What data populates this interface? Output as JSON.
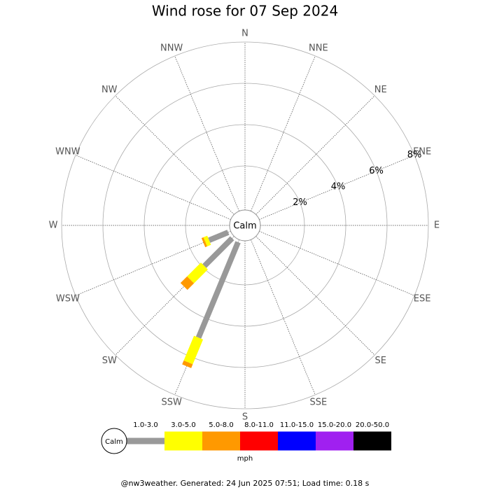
{
  "chart_data": {
    "type": "windrose",
    "title": "Wind rose for 07 Sep 2024",
    "directions": [
      "N",
      "NNE",
      "NE",
      "ENE",
      "E",
      "ESE",
      "SE",
      "SSE",
      "S",
      "SSW",
      "SW",
      "WSW",
      "W",
      "WNW",
      "NW",
      "NNW"
    ],
    "calm_label": "Calm",
    "unit": "mph",
    "rlim": [
      0,
      8
    ],
    "rticks": [
      {
        "value": 2,
        "label": "2%"
      },
      {
        "value": 4,
        "label": "4%"
      },
      {
        "value": 6,
        "label": "6%"
      },
      {
        "value": 8,
        "label": "8%"
      }
    ],
    "series": [
      {
        "name": "1.0-3.0",
        "color": "#999999",
        "values": [
          0,
          0,
          0,
          0,
          0,
          0,
          0,
          0,
          0,
          5.0,
          1.9,
          1.0,
          0,
          0,
          0,
          0
        ]
      },
      {
        "name": "3.0-5.0",
        "color": "#ffff00",
        "values": [
          0,
          0,
          0,
          0,
          0,
          0,
          0,
          0,
          0,
          1.3,
          0.95,
          0.2,
          0,
          0,
          0,
          0
        ]
      },
      {
        "name": "5.0-8.0",
        "color": "#ff9900",
        "values": [
          0,
          0,
          0,
          0,
          0,
          0,
          0,
          0,
          0,
          0.2,
          0.45,
          0.1,
          0,
          0,
          0,
          0
        ]
      },
      {
        "name": "8.0-11.0",
        "color": "#ff0000",
        "values": [
          0,
          0,
          0,
          0,
          0,
          0,
          0,
          0,
          0,
          0,
          0,
          0,
          0,
          0,
          0,
          0
        ]
      },
      {
        "name": "11.0-15.0",
        "color": "#0000ff",
        "values": [
          0,
          0,
          0,
          0,
          0,
          0,
          0,
          0,
          0,
          0,
          0,
          0,
          0,
          0,
          0,
          0
        ]
      },
      {
        "name": "15.0-20.0",
        "color": "#a020f0",
        "values": [
          0,
          0,
          0,
          0,
          0,
          0,
          0,
          0,
          0,
          0,
          0,
          0,
          0,
          0,
          0,
          0
        ]
      },
      {
        "name": "20.0-50.0",
        "color": "#000000",
        "values": [
          0,
          0,
          0,
          0,
          0,
          0,
          0,
          0,
          0,
          0,
          0,
          0,
          0,
          0,
          0,
          0
        ]
      }
    ]
  },
  "footer": "@nw3weather. Generated: 24 Jun 2025 07:51; Load time: 0.18 s"
}
